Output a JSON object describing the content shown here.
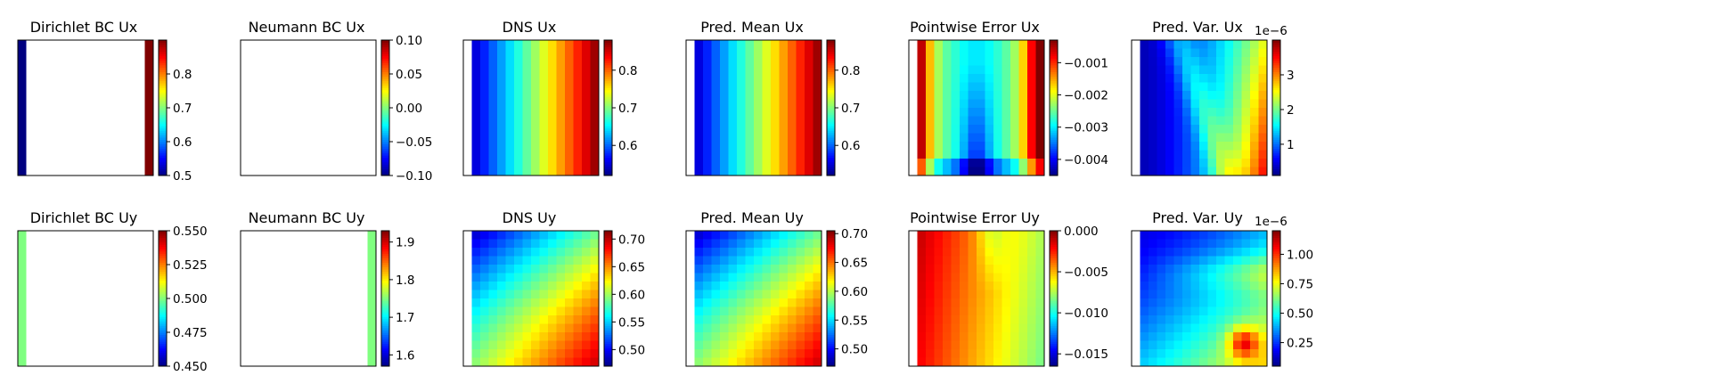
{
  "colormap": "jet",
  "chart_data": [
    {
      "id": "dirichlet-ux",
      "type": "heatmap",
      "title": "Dirichlet BC Ux",
      "field": "dirichlet",
      "orientation": "x",
      "grid": [
        16,
        16
      ],
      "vrange": [
        0.5,
        0.9
      ],
      "ticks": [
        "0.5",
        "0.6",
        "0.7",
        "0.8"
      ],
      "tick_values": [
        0.5,
        0.6,
        0.7,
        0.8
      ],
      "exponent": "",
      "left_edge_value": 0.5,
      "right_edge_value": 0.9
    },
    {
      "id": "neumann-ux",
      "type": "heatmap",
      "title": "Neumann BC Ux",
      "field": "empty",
      "orientation": "x",
      "grid": [
        16,
        16
      ],
      "vrange": [
        -0.1,
        0.1
      ],
      "ticks": [
        "−0.10",
        "−0.05",
        "0.00",
        "0.05",
        "0.10"
      ],
      "tick_values": [
        -0.1,
        -0.05,
        0,
        0.05,
        0.1
      ],
      "exponent": ""
    },
    {
      "id": "dns-ux",
      "type": "heatmap",
      "title": "DNS Ux",
      "field": "x-gradient",
      "orientation": "x",
      "grid": [
        16,
        16
      ],
      "vrange": [
        0.52,
        0.88
      ],
      "ticks": [
        "0.6",
        "0.7",
        "0.8"
      ],
      "tick_values": [
        0.6,
        0.7,
        0.8
      ],
      "exponent": ""
    },
    {
      "id": "pred-mean-ux",
      "type": "heatmap",
      "title": "Pred. Mean Ux",
      "field": "x-gradient",
      "orientation": "x",
      "grid": [
        16,
        16
      ],
      "vrange": [
        0.52,
        0.88
      ],
      "ticks": [
        "0.6",
        "0.7",
        "0.8"
      ],
      "tick_values": [
        0.6,
        0.7,
        0.8
      ],
      "exponent": ""
    },
    {
      "id": "error-ux",
      "type": "heatmap",
      "title": "Pointwise Error Ux",
      "field": "error-ux",
      "orientation": "x",
      "grid": [
        16,
        16
      ],
      "vrange": [
        -0.0045,
        -0.0003
      ],
      "ticks": [
        "−0.004",
        "−0.003",
        "−0.002",
        "−0.001"
      ],
      "tick_values": [
        -0.004,
        -0.003,
        -0.002,
        -0.001
      ],
      "exponent": ""
    },
    {
      "id": "var-ux",
      "type": "heatmap",
      "title": "Pred. Var. Ux",
      "field": "var-ux",
      "orientation": "x",
      "grid": [
        16,
        16
      ],
      "vrange": [
        0.1,
        4.0
      ],
      "ticks": [
        "1",
        "2",
        "3"
      ],
      "tick_values": [
        1,
        2,
        3
      ],
      "exponent": "1e−6"
    },
    {
      "id": "dirichlet-uy",
      "type": "heatmap",
      "title": "Dirichlet BC Uy",
      "field": "dirichlet-uy",
      "orientation": "y",
      "grid": [
        16,
        16
      ],
      "vrange": [
        0.45,
        0.55
      ],
      "ticks": [
        "0.450",
        "0.475",
        "0.500",
        "0.525",
        "0.550"
      ],
      "tick_values": [
        0.45,
        0.475,
        0.5,
        0.525,
        0.55
      ],
      "exponent": "",
      "left_edge_value": 0.5
    },
    {
      "id": "neumann-uy",
      "type": "heatmap",
      "title": "Neumann BC Uy",
      "field": "neumann-uy",
      "orientation": "y",
      "grid": [
        16,
        16
      ],
      "vrange": [
        1.57,
        1.93
      ],
      "ticks": [
        "1.6",
        "1.7",
        "1.8",
        "1.9"
      ],
      "tick_values": [
        1.6,
        1.7,
        1.8,
        1.9
      ],
      "exponent": "",
      "right_edge_value": 1.75
    },
    {
      "id": "dns-uy",
      "type": "heatmap",
      "title": "DNS Uy",
      "field": "diag-uy",
      "orientation": "y",
      "grid": [
        16,
        16
      ],
      "vrange": [
        0.47,
        0.715
      ],
      "ticks": [
        "0.50",
        "0.55",
        "0.60",
        "0.65",
        "0.70"
      ],
      "tick_values": [
        0.5,
        0.55,
        0.6,
        0.65,
        0.7
      ],
      "exponent": ""
    },
    {
      "id": "pred-mean-uy",
      "type": "heatmap",
      "title": "Pred. Mean Uy",
      "field": "diag-uy",
      "orientation": "y",
      "grid": [
        16,
        16
      ],
      "vrange": [
        0.47,
        0.705
      ],
      "ticks": [
        "0.50",
        "0.55",
        "0.60",
        "0.65",
        "0.70"
      ],
      "tick_values": [
        0.5,
        0.55,
        0.6,
        0.65,
        0.7
      ],
      "exponent": ""
    },
    {
      "id": "error-uy",
      "type": "heatmap",
      "title": "Pointwise Error Uy",
      "field": "error-uy",
      "orientation": "y",
      "grid": [
        16,
        16
      ],
      "vrange": [
        -0.0165,
        0.0
      ],
      "ticks": [
        "−0.015",
        "−0.010",
        "−0.005",
        "0.000"
      ],
      "tick_values": [
        -0.015,
        -0.01,
        -0.005,
        0.0
      ],
      "exponent": ""
    },
    {
      "id": "var-uy",
      "type": "heatmap",
      "title": "Pred. Var. Uy",
      "field": "var-uy",
      "orientation": "y",
      "grid": [
        16,
        16
      ],
      "vrange": [
        0.05,
        1.2
      ],
      "ticks": [
        "0.25",
        "0.50",
        "0.75",
        "1.00"
      ],
      "tick_values": [
        0.25,
        0.5,
        0.75,
        1.0
      ],
      "exponent": "1e−6"
    }
  ]
}
